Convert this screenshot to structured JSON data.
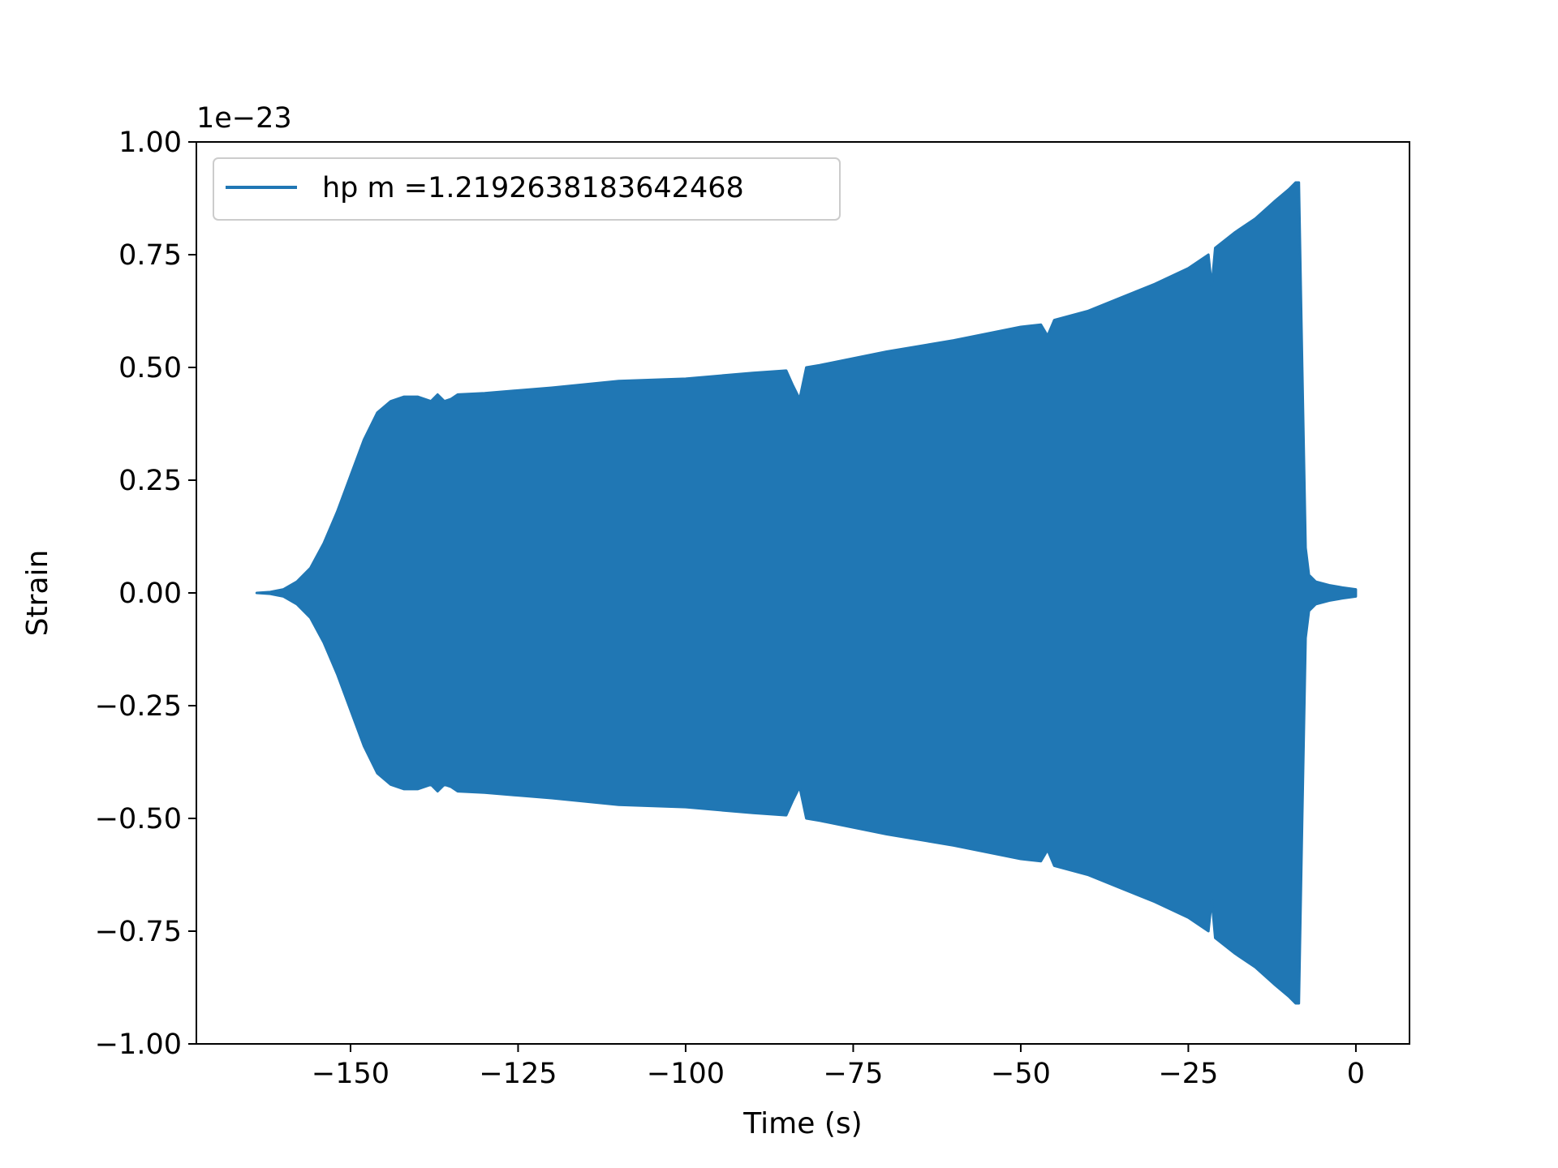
{
  "chart_data": {
    "type": "line",
    "title": "",
    "xlabel": "Time (s)",
    "ylabel": "Strain",
    "y_offset_label": "1e−23",
    "xlim": [
      -173,
      8
    ],
    "ylim": [
      -1.0,
      1.0
    ],
    "x_ticks": [
      -150,
      -125,
      -100,
      -75,
      -50,
      -25,
      0
    ],
    "x_tick_labels": [
      "−150",
      "−125",
      "−100",
      "−75",
      "−50",
      "−25",
      "0"
    ],
    "y_ticks": [
      1.0,
      0.75,
      0.5,
      0.25,
      0.0,
      -0.25,
      -0.5,
      -0.75,
      -1.0
    ],
    "y_tick_labels": [
      "1.00",
      "0.75",
      "0.50",
      "0.25",
      "0.00",
      "−0.25",
      "−0.50",
      "−0.75",
      "−1.00"
    ],
    "grid": false,
    "legend_position": "top-left",
    "series": [
      {
        "name": "hp m =1.2192638183642468",
        "color": "#2077b4",
        "render": "oscillation-envelope",
        "envelope": {
          "x": [
            -164,
            -162,
            -160,
            -158,
            -156,
            -154,
            -152,
            -150,
            -148,
            -146,
            -144,
            -142,
            -140,
            -138,
            -137,
            -136,
            -135,
            -134,
            -130,
            -120,
            -110,
            -100,
            -90,
            -85,
            -84,
            -83,
            -82,
            -80,
            -75,
            -70,
            -60,
            -50,
            -47,
            -46,
            -45,
            -40,
            -35,
            -30,
            -25,
            -22,
            -21.5,
            -21,
            -18,
            -15,
            -12,
            -10,
            -9,
            -8.5,
            -8,
            -7.5,
            -7,
            -6,
            -4,
            -2,
            0
          ],
          "amplitude": [
            0.0,
            0.002,
            0.008,
            0.025,
            0.055,
            0.11,
            0.18,
            0.26,
            0.34,
            0.4,
            0.425,
            0.435,
            0.435,
            0.425,
            0.44,
            0.425,
            0.43,
            0.44,
            0.443,
            0.455,
            0.47,
            0.475,
            0.488,
            0.493,
            0.46,
            0.43,
            0.5,
            0.505,
            0.52,
            0.535,
            0.56,
            0.59,
            0.595,
            0.57,
            0.605,
            0.625,
            0.655,
            0.685,
            0.72,
            0.75,
            0.68,
            0.765,
            0.8,
            0.83,
            0.87,
            0.895,
            0.91,
            0.91,
            0.5,
            0.1,
            0.04,
            0.025,
            0.017,
            0.012,
            0.008
          ]
        }
      }
    ]
  }
}
